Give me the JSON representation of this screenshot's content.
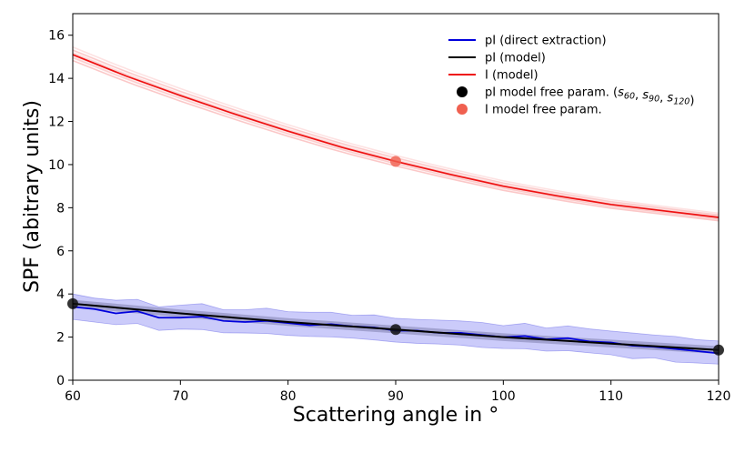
{
  "chart_data": {
    "type": "line",
    "xlabel": "Scattering angle in °",
    "ylabel": "SPF (abitrary units)",
    "xlim": [
      60,
      120
    ],
    "ylim": [
      0,
      17
    ],
    "xticks": [
      "60",
      "70",
      "80",
      "90",
      "100",
      "110",
      "120"
    ],
    "yticks": [
      "0",
      "2",
      "4",
      "6",
      "8",
      "10",
      "12",
      "14",
      "16"
    ],
    "grid": false,
    "legend_position": "top-right",
    "legend": [
      {
        "label": "pI (direct extraction)",
        "kind": "line",
        "color": "#0000dd"
      },
      {
        "label": "pI (model)",
        "kind": "line",
        "color": "#000000"
      },
      {
        "label": "I (model)",
        "kind": "line",
        "color": "#ee1111"
      },
      {
        "label_prefix": "pI model free param. (",
        "label_parts": [
          "s",
          "60",
          ", ",
          "s",
          "90",
          ", ",
          "s",
          "120",
          ")"
        ],
        "kind": "marker",
        "color": "#000000"
      },
      {
        "label": "I model free param.",
        "kind": "marker",
        "color": "#f06050"
      }
    ],
    "series": [
      {
        "name": "I (model)",
        "color": "#ee1111",
        "x": [
          60,
          65,
          70,
          75,
          80,
          85,
          90,
          95,
          100,
          105,
          110,
          115,
          120
        ],
        "y": [
          15.1,
          14.1,
          13.2,
          12.35,
          11.55,
          10.8,
          10.15,
          9.55,
          9.0,
          8.55,
          8.15,
          7.85,
          7.55
        ],
        "band_spread": 0.35
      },
      {
        "name": "pI (model)",
        "color": "#000000",
        "x": [
          60,
          70,
          80,
          90,
          100,
          110,
          120
        ],
        "y": [
          3.55,
          3.1,
          2.7,
          2.35,
          2.0,
          1.7,
          1.4
        ]
      },
      {
        "name": "pI (direct extraction)",
        "color": "#0000dd",
        "x": [
          60,
          62,
          64,
          66,
          68,
          70,
          72,
          74,
          76,
          78,
          80,
          82,
          84,
          86,
          88,
          90,
          92,
          94,
          96,
          98,
          100,
          102,
          104,
          106,
          108,
          110,
          112,
          114,
          116,
          118,
          120
        ],
        "y": [
          3.4,
          3.3,
          3.1,
          3.2,
          2.9,
          2.9,
          2.95,
          2.75,
          2.7,
          2.75,
          2.65,
          2.55,
          2.6,
          2.5,
          2.45,
          2.3,
          2.3,
          2.2,
          2.2,
          2.1,
          2.0,
          2.05,
          1.9,
          1.95,
          1.8,
          1.75,
          1.6,
          1.55,
          1.45,
          1.35,
          1.25
        ],
        "band_halfwidth": 0.55
      }
    ],
    "markers": [
      {
        "name": "I model free param.",
        "color": "#f06050",
        "points": [
          [
            90,
            10.15
          ]
        ]
      },
      {
        "name": "pI model free param.",
        "color": "#111111",
        "points": [
          [
            60,
            3.55
          ],
          [
            90,
            2.35
          ],
          [
            120,
            1.4
          ]
        ]
      }
    ]
  }
}
